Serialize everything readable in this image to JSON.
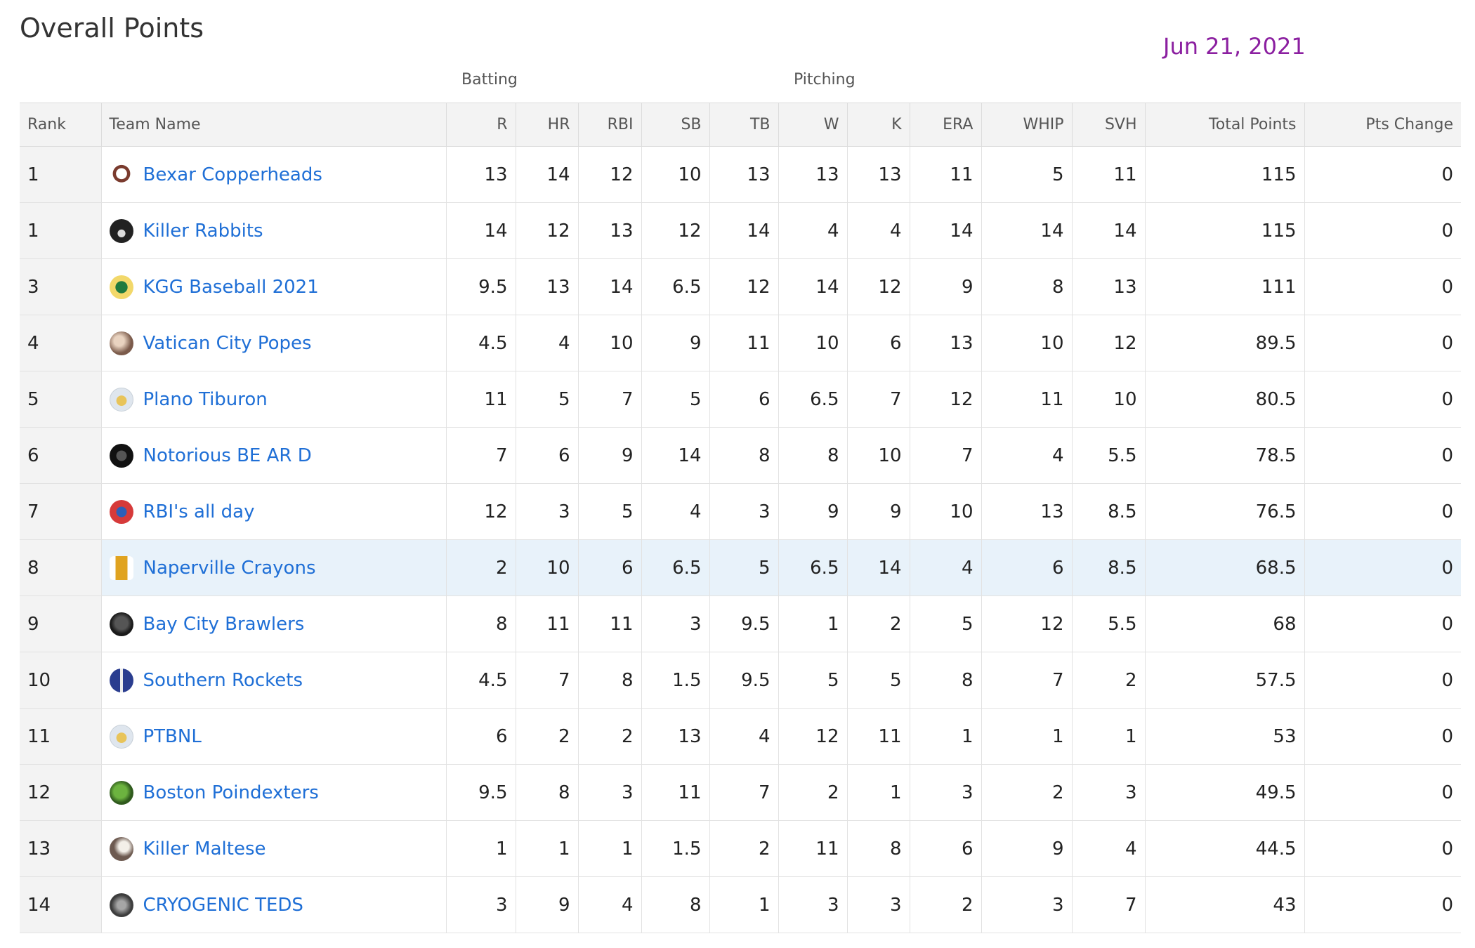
{
  "page": {
    "title": "Overall Points",
    "date": "Jun 21, 2021"
  },
  "groups": {
    "batting": "Batting",
    "pitching": "Pitching"
  },
  "columns": [
    "Rank",
    "Team Name",
    "R",
    "HR",
    "RBI",
    "SB",
    "TB",
    "W",
    "K",
    "ERA",
    "WHIP",
    "SVH",
    "Total Points",
    "Pts Change"
  ],
  "rows": [
    {
      "rank": "1",
      "team": "Bexar Copperheads",
      "logo": "snake-logo-icon",
      "stats": [
        "13",
        "14",
        "12",
        "10",
        "13",
        "13",
        "13",
        "11",
        "5",
        "11"
      ],
      "total": "115",
      "change": "0"
    },
    {
      "rank": "1",
      "team": "Killer Rabbits",
      "logo": "rabbit-logo-icon",
      "stats": [
        "14",
        "12",
        "13",
        "12",
        "14",
        "4",
        "4",
        "14",
        "14",
        "14"
      ],
      "total": "115",
      "change": "0"
    },
    {
      "rank": "3",
      "team": "KGG Baseball 2021",
      "logo": "cap-logo-icon",
      "stats": [
        "9.5",
        "13",
        "14",
        "6.5",
        "12",
        "14",
        "12",
        "9",
        "8",
        "13"
      ],
      "total": "111",
      "change": "0"
    },
    {
      "rank": "4",
      "team": "Vatican City Popes",
      "logo": "pope-logo-icon",
      "stats": [
        "4.5",
        "4",
        "10",
        "9",
        "11",
        "10",
        "6",
        "13",
        "10",
        "12"
      ],
      "total": "89.5",
      "change": "0"
    },
    {
      "rank": "5",
      "team": "Plano Tiburon",
      "logo": "default-cap-logo-icon",
      "stats": [
        "11",
        "5",
        "7",
        "5",
        "6",
        "6.5",
        "7",
        "12",
        "11",
        "10"
      ],
      "total": "80.5",
      "change": "0"
    },
    {
      "rank": "6",
      "team": "Notorious BE AR D",
      "logo": "bear-logo-icon",
      "stats": [
        "7",
        "6",
        "9",
        "14",
        "8",
        "8",
        "10",
        "7",
        "4",
        "5.5"
      ],
      "total": "78.5",
      "change": "0"
    },
    {
      "rank": "7",
      "team": "RBI's all day",
      "logo": "red-cap-logo-icon",
      "stats": [
        "12",
        "3",
        "5",
        "4",
        "3",
        "9",
        "9",
        "10",
        "13",
        "8.5"
      ],
      "total": "76.5",
      "change": "0"
    },
    {
      "rank": "8",
      "team": "Naperville Crayons",
      "logo": "crayon-logo-icon",
      "stats": [
        "2",
        "10",
        "6",
        "6.5",
        "5",
        "6.5",
        "14",
        "4",
        "6",
        "8.5"
      ],
      "total": "68.5",
      "change": "0",
      "highlight": true
    },
    {
      "rank": "9",
      "team": "Bay City Brawlers",
      "logo": "dog-logo-icon",
      "stats": [
        "8",
        "11",
        "11",
        "3",
        "9.5",
        "1",
        "2",
        "5",
        "12",
        "5.5"
      ],
      "total": "68",
      "change": "0"
    },
    {
      "rank": "10",
      "team": "Southern Rockets",
      "logo": "rocket-logo-icon",
      "stats": [
        "4.5",
        "7",
        "8",
        "1.5",
        "9.5",
        "5",
        "5",
        "8",
        "7",
        "2"
      ],
      "total": "57.5",
      "change": "0"
    },
    {
      "rank": "11",
      "team": "PTBNL",
      "logo": "default-cap-logo-icon",
      "stats": [
        "6",
        "2",
        "2",
        "13",
        "4",
        "12",
        "11",
        "1",
        "1",
        "1"
      ],
      "total": "53",
      "change": "0"
    },
    {
      "rank": "12",
      "team": "Boston Poindexters",
      "logo": "frog-logo-icon",
      "stats": [
        "9.5",
        "8",
        "3",
        "11",
        "7",
        "2",
        "1",
        "3",
        "2",
        "3"
      ],
      "total": "49.5",
      "change": "0"
    },
    {
      "rank": "13",
      "team": "Killer Maltese",
      "logo": "maltese-logo-icon",
      "stats": [
        "1",
        "1",
        "1",
        "1.5",
        "2",
        "11",
        "8",
        "6",
        "9",
        "4"
      ],
      "total": "44.5",
      "change": "0"
    },
    {
      "rank": "14",
      "team": "CRYOGENIC TEDS",
      "logo": "ted-logo-icon",
      "stats": [
        "3",
        "9",
        "4",
        "8",
        "1",
        "3",
        "3",
        "2",
        "3",
        "7"
      ],
      "total": "43",
      "change": "0"
    }
  ],
  "colors": {
    "link": "#1f6fd6",
    "date": "#8b1fa0",
    "highlight_row": "#e8f2fa",
    "header_bg": "#f3f3f3"
  }
}
